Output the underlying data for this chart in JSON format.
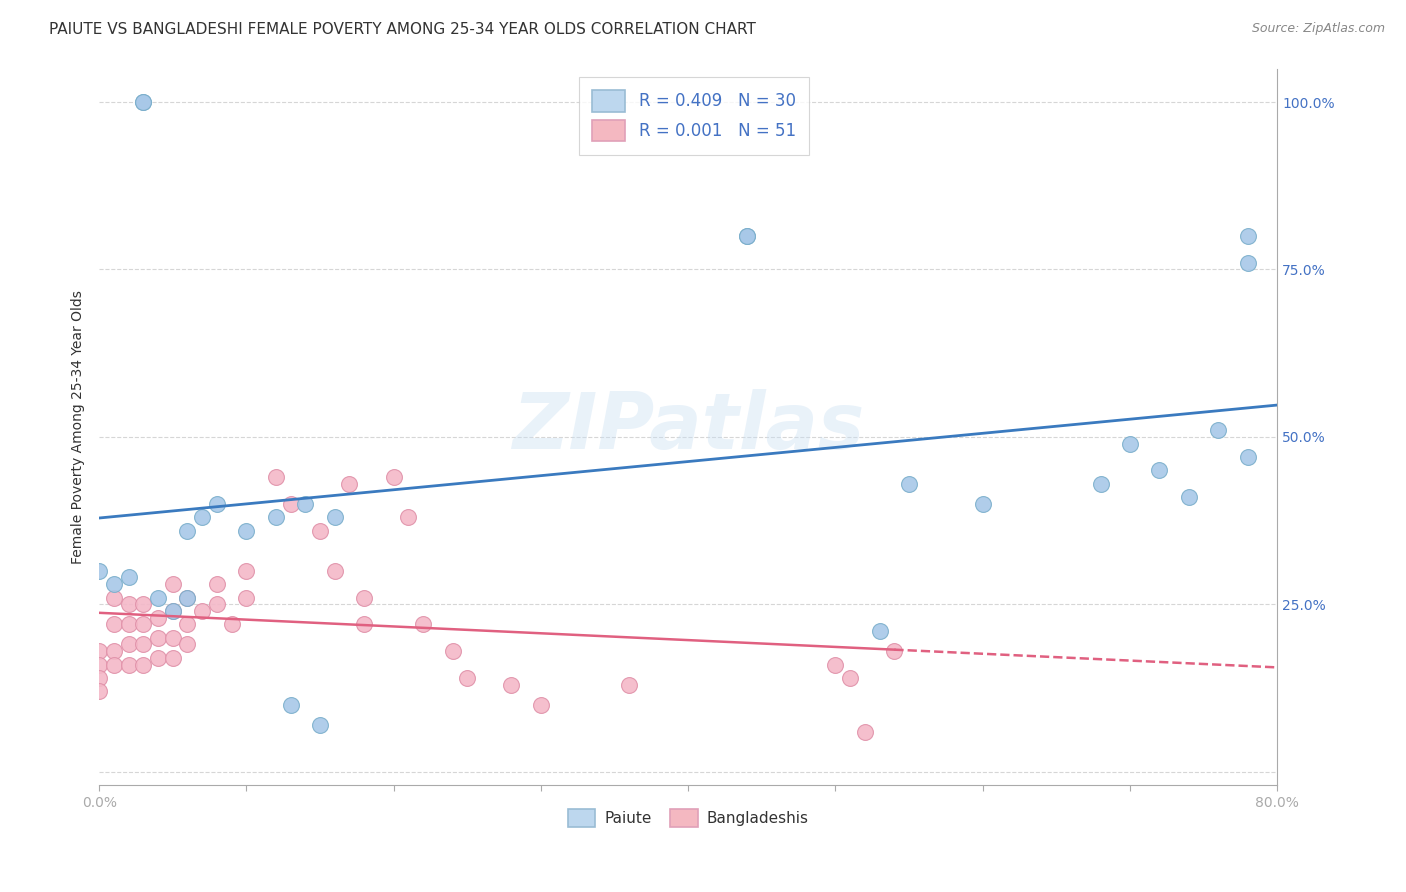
{
  "title": "PAIUTE VS BANGLADESHI FEMALE POVERTY AMONG 25-34 YEAR OLDS CORRELATION CHART",
  "source": "Source: ZipAtlas.com",
  "ylabel": "Female Poverty Among 25-34 Year Olds",
  "xlim": [
    0.0,
    0.8
  ],
  "ylim": [
    -0.02,
    1.05
  ],
  "xticks": [
    0.0,
    0.1,
    0.2,
    0.3,
    0.4,
    0.5,
    0.6,
    0.7,
    0.8
  ],
  "xticklabels": [
    "0.0%",
    "",
    "",
    "",
    "",
    "",
    "",
    "",
    "80.0%"
  ],
  "ytick_positions": [
    0.0,
    0.25,
    0.5,
    0.75,
    1.0
  ],
  "yticklabels": [
    "",
    "25.0%",
    "50.0%",
    "75.0%",
    "100.0%"
  ],
  "watermark": "ZIPatlas",
  "paiute_color": "#a8c8e8",
  "bangladeshi_color": "#f4b8c8",
  "paiute_edge_color": "#7aaecb",
  "bangladeshi_edge_color": "#e090a8",
  "paiute_line_color": "#3a7abf",
  "bangladeshi_line_color": "#e06080",
  "legend_fill_paiute": "#bdd7ee",
  "legend_fill_bangladeshi": "#f4b8c1",
  "legend_edge_paiute": "#9abcd4",
  "legend_edge_bangladeshi": "#e0a0b8",
  "R_paiute": 0.409,
  "N_paiute": 30,
  "R_bangladeshi": 0.001,
  "N_bangladeshi": 51,
  "paiute_x": [
    0.0,
    0.01,
    0.02,
    0.03,
    0.03,
    0.04,
    0.05,
    0.06,
    0.06,
    0.07,
    0.08,
    0.1,
    0.12,
    0.13,
    0.14,
    0.15,
    0.16,
    0.44,
    0.44,
    0.53,
    0.55,
    0.6,
    0.68,
    0.7,
    0.72,
    0.74,
    0.76,
    0.78,
    0.78,
    0.78
  ],
  "paiute_y": [
    0.3,
    0.28,
    0.29,
    1.0,
    1.0,
    0.26,
    0.24,
    0.36,
    0.26,
    0.38,
    0.4,
    0.36,
    0.38,
    0.1,
    0.4,
    0.07,
    0.38,
    0.8,
    0.8,
    0.21,
    0.43,
    0.4,
    0.43,
    0.49,
    0.45,
    0.41,
    0.51,
    0.47,
    0.76,
    0.8
  ],
  "bangladeshi_x": [
    0.0,
    0.0,
    0.0,
    0.0,
    0.01,
    0.01,
    0.01,
    0.01,
    0.02,
    0.02,
    0.02,
    0.02,
    0.03,
    0.03,
    0.03,
    0.03,
    0.04,
    0.04,
    0.04,
    0.05,
    0.05,
    0.05,
    0.05,
    0.06,
    0.06,
    0.06,
    0.07,
    0.08,
    0.08,
    0.09,
    0.1,
    0.1,
    0.12,
    0.13,
    0.15,
    0.16,
    0.17,
    0.18,
    0.18,
    0.2,
    0.21,
    0.22,
    0.24,
    0.25,
    0.28,
    0.3,
    0.36,
    0.5,
    0.51,
    0.52,
    0.54
  ],
  "bangladeshi_y": [
    0.18,
    0.16,
    0.14,
    0.12,
    0.26,
    0.22,
    0.18,
    0.16,
    0.25,
    0.22,
    0.19,
    0.16,
    0.25,
    0.22,
    0.19,
    0.16,
    0.23,
    0.2,
    0.17,
    0.28,
    0.24,
    0.2,
    0.17,
    0.26,
    0.22,
    0.19,
    0.24,
    0.28,
    0.25,
    0.22,
    0.3,
    0.26,
    0.44,
    0.4,
    0.36,
    0.3,
    0.43,
    0.26,
    0.22,
    0.44,
    0.38,
    0.22,
    0.18,
    0.14,
    0.13,
    0.1,
    0.13,
    0.16,
    0.14,
    0.06,
    0.18
  ],
  "background_color": "#ffffff",
  "grid_color": "#cccccc",
  "title_fontsize": 11,
  "axis_label_fontsize": 10,
  "tick_fontsize": 10,
  "legend_fontsize": 12,
  "source_fontsize": 9,
  "legend_text_color": "#4472c4",
  "ytick_color": "#4472c4"
}
